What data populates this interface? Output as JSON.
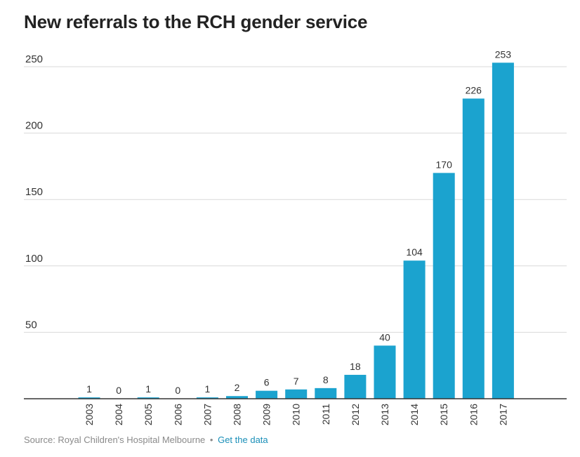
{
  "title": "New referrals to the RCH gender service",
  "footer": {
    "source": "Source: Royal Children's Hospital Melbourne",
    "separator": "•",
    "link_label": "Get the data"
  },
  "colors": {
    "bar": "#1ba3cf",
    "grid": "#d9d9d9",
    "axis": "#333333",
    "text": "#333333",
    "link": "#1a8fb8"
  },
  "chart_data": {
    "type": "bar",
    "title": "New referrals to the RCH gender service",
    "xlabel": "",
    "ylabel": "",
    "categories": [
      "2003",
      "2004",
      "2005",
      "2006",
      "2007",
      "2008",
      "2009",
      "2010",
      "2011",
      "2012",
      "2013",
      "2014",
      "2015",
      "2016",
      "2017"
    ],
    "values": [
      1,
      0,
      1,
      0,
      1,
      2,
      6,
      7,
      8,
      18,
      40,
      104,
      170,
      226,
      253
    ],
    "ylim": [
      0,
      250
    ],
    "yticks": [
      50,
      100,
      150,
      200,
      250
    ],
    "grid": true,
    "data_labels": true
  }
}
